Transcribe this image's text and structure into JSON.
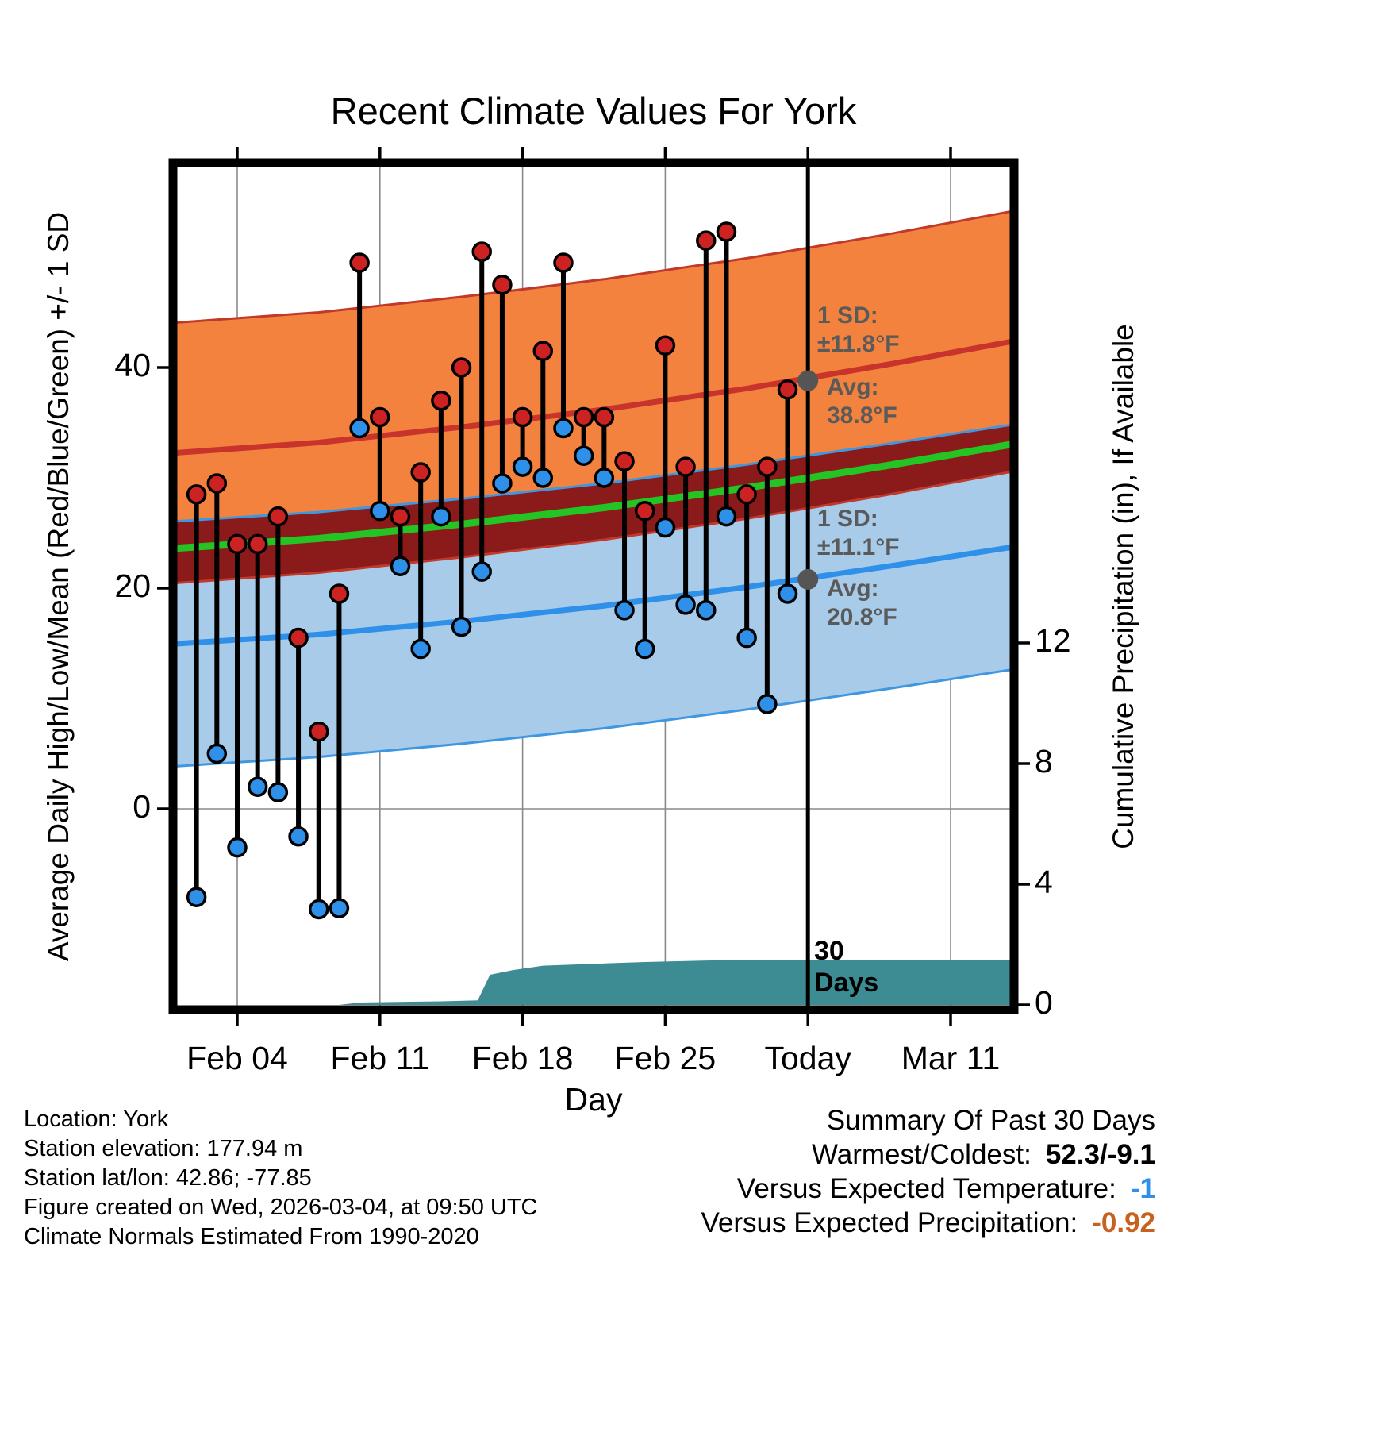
{
  "title": "Recent Climate Values For York",
  "axes": {
    "left_label": "Average Daily High/Low/Mean (Red/Blue/Green) +/- 1 SD",
    "right_label": "Cumulative Precipitation (in), If Available",
    "x_label": "Day",
    "left_ticks": [
      0,
      20,
      40
    ],
    "right_ticks": [
      0,
      4,
      8,
      12
    ],
    "x_ticks": [
      {
        "label": "Feb 04",
        "day": 3
      },
      {
        "label": "Feb 11",
        "day": 10
      },
      {
        "label": "Feb 18",
        "day": 17
      },
      {
        "label": "Feb 25",
        "day": 24
      },
      {
        "label": "Today",
        "day": 31
      },
      {
        "label": "Mar 11",
        "day": 38
      }
    ]
  },
  "annotations": {
    "high": {
      "sd_label": "1 SD:",
      "sd_value": "±11.8°F",
      "avg_label": "Avg:",
      "avg_value": "38.8°F"
    },
    "low": {
      "sd_label": "1 SD:",
      "sd_value": "±11.1°F",
      "avg_label": "Avg:",
      "avg_value": "20.8°F"
    },
    "days_line1": "30",
    "days_line2": "Days"
  },
  "footer_left": {
    "lines": [
      "Location: York",
      "Station elevation: 177.94 m",
      "Station lat/lon: 42.86; -77.85",
      "Figure created on Wed, 2026-03-04, at 09:50 UTC",
      "Climate Normals Estimated From 1990-2020"
    ]
  },
  "summary": {
    "title": "Summary Of Past 30 Days",
    "rows": [
      {
        "label": "Warmest/Coldest:",
        "value": "52.3/-9.1",
        "color": "#000000"
      },
      {
        "label": "Versus Expected Temperature:",
        "value": "-1",
        "color": "#2E90E8"
      },
      {
        "label": "Versus Expected Precipitation:",
        "value": "-0.92",
        "color": "#C8601E"
      }
    ]
  },
  "colors": {
    "high_band": "#F2823E",
    "high_band_edge": "#C0392B",
    "avg_high_line": "#C8342C",
    "overlap_band": "#8B1A1A",
    "mean_line": "#23C423",
    "low_band": "#A7CBE8",
    "low_band_edge": "#3E97E0",
    "avg_low_line": "#2E90E8",
    "precip_area": "#3D8C94",
    "high_dot": "#CC2222",
    "low_dot": "#2E90E8",
    "stem": "#000000",
    "grid": "#8A8A8A",
    "today_line": "#000000",
    "avg_marker": "#555555",
    "annotation_text": "#5A5A5A"
  },
  "chart_data": {
    "type": "line",
    "title": "Recent Climate Values For York",
    "x_axis_note": "day_index = days since Feb 01, 2026",
    "xlim_days": [
      -0.15,
      41.1
    ],
    "ylim_temp_f": [
      -18,
      58.5
    ],
    "ylim_precip_in": [
      0,
      16
    ],
    "daily": {
      "dates": [
        "Feb 02",
        "Feb 03",
        "Feb 04",
        "Feb 05",
        "Feb 06",
        "Feb 07",
        "Feb 08",
        "Feb 09",
        "Feb 10",
        "Feb 11",
        "Feb 12",
        "Feb 13",
        "Feb 14",
        "Feb 15",
        "Feb 16",
        "Feb 17",
        "Feb 18",
        "Feb 19",
        "Feb 20",
        "Feb 21",
        "Feb 22",
        "Feb 23",
        "Feb 24",
        "Feb 25",
        "Feb 26",
        "Feb 27",
        "Feb 28",
        "Mar 01",
        "Mar 02",
        "Mar 03"
      ],
      "day_index": [
        1,
        2,
        3,
        4,
        5,
        6,
        7,
        8,
        9,
        10,
        11,
        12,
        13,
        14,
        15,
        16,
        17,
        18,
        19,
        20,
        21,
        22,
        23,
        24,
        25,
        26,
        27,
        28,
        29,
        30
      ],
      "high_f": [
        28.5,
        29.5,
        24,
        24,
        26.5,
        15.5,
        7,
        19.5,
        49.5,
        35.5,
        26.5,
        30.5,
        37,
        40,
        50.5,
        47.5,
        35.5,
        41.5,
        49.5,
        35.5,
        35.5,
        31.5,
        27,
        42,
        31,
        51.5,
        52.3,
        28.5,
        31,
        38
      ],
      "low_f": [
        -8,
        5,
        -3.5,
        2,
        1.5,
        -2.5,
        -9.1,
        -9,
        34.5,
        27,
        22,
        14.5,
        26.5,
        16.5,
        21.5,
        29.5,
        31,
        30,
        34.5,
        32,
        30,
        18,
        14.5,
        25.5,
        18.5,
        18,
        26.5,
        15.5,
        9.5,
        19.5
      ]
    },
    "normals": {
      "day_index": [
        -0.5,
        7,
        14,
        21,
        28,
        35,
        42
      ],
      "avg_high_f": [
        32.2,
        33.2,
        34.6,
        36.2,
        38.1,
        40.3,
        42.7
      ],
      "avg_low_f": [
        14.9,
        15.8,
        17.0,
        18.4,
        20.1,
        22.0,
        24.0
      ],
      "sd_high_f": 11.8,
      "sd_low_f": 11.1
    },
    "precip_cumulative": {
      "day_index": [
        8,
        9,
        13,
        14.8,
        15.4,
        16.5,
        18,
        20,
        23,
        26,
        29,
        41.1
      ],
      "inches": [
        0,
        0.08,
        0.12,
        0.15,
        1.0,
        1.15,
        1.3,
        1.35,
        1.42,
        1.47,
        1.5,
        1.5
      ]
    },
    "week_tick_days": [
      3,
      10,
      17,
      24,
      31,
      38
    ],
    "today_day_index": 31,
    "today_avg_high_f": 38.8,
    "today_sd_high_f": 11.8,
    "today_avg_low_f": 20.8,
    "today_sd_low_f": 11.1,
    "summary_past_30_days": {
      "warmest_f": 52.3,
      "coldest_f": -9.1,
      "vs_expected_temp_f": -1,
      "vs_expected_precip_in": -0.92
    }
  }
}
